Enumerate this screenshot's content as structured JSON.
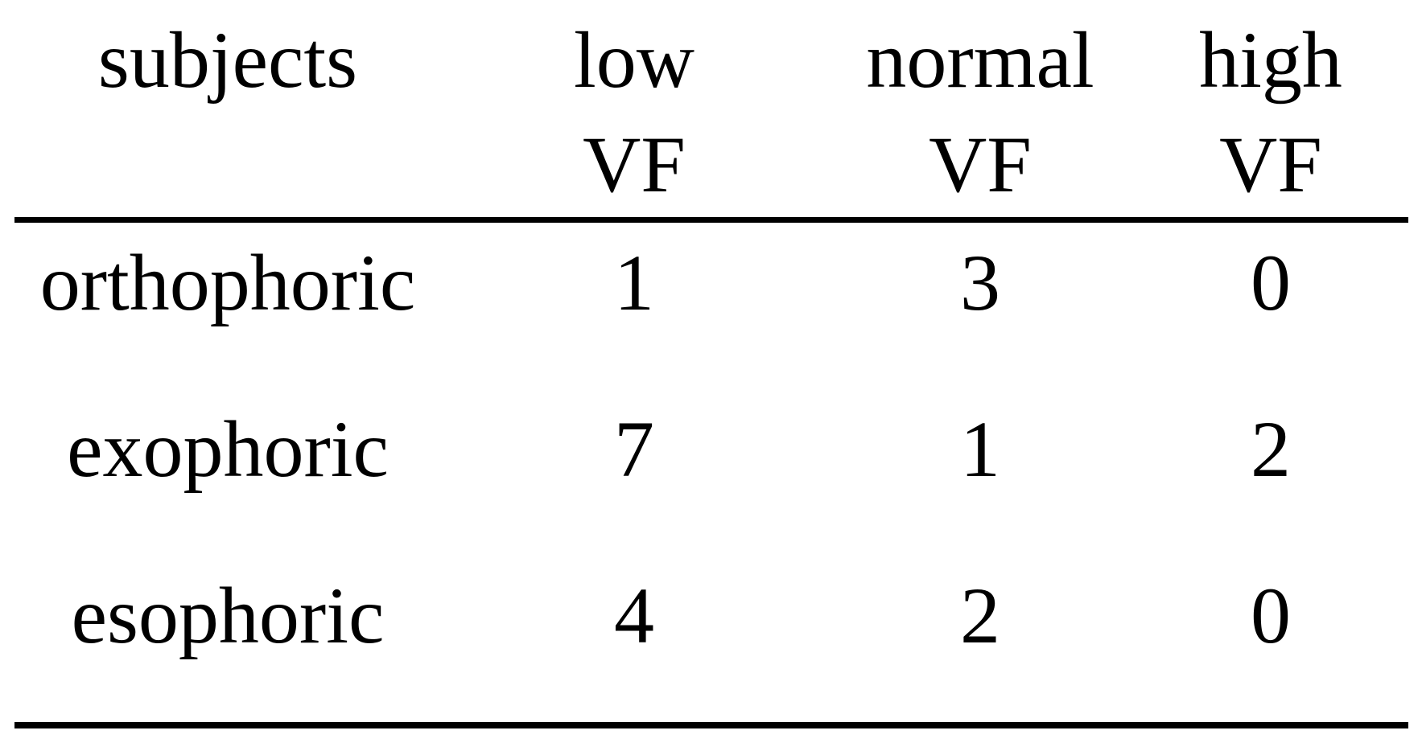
{
  "figure": {
    "background_color": "#ffffff",
    "text_color": "#000000",
    "rule_color": "#000000"
  },
  "table": {
    "columns": [
      {
        "id": "subjects",
        "line1": "subjects",
        "line2": ""
      },
      {
        "id": "low-vf",
        "line1": "low",
        "line2": "VF"
      },
      {
        "id": "normal-vf",
        "line1": "normal",
        "line2": "VF"
      },
      {
        "id": "high-vf",
        "line1": "high",
        "line2": "VF"
      }
    ],
    "rows": [
      {
        "label": "orthophoric",
        "values": [
          "1",
          "3",
          "0"
        ]
      },
      {
        "label": "exophoric",
        "values": [
          "7",
          "1",
          "2"
        ]
      },
      {
        "label": "esophoric",
        "values": [
          "4",
          "2",
          "0"
        ]
      }
    ]
  },
  "chart_data": {
    "type": "table",
    "columns": [
      "subjects",
      "low VF",
      "normal VF",
      "high VF"
    ],
    "rows": [
      [
        "orthophoric",
        1,
        3,
        0
      ],
      [
        "exophoric",
        7,
        1,
        2
      ],
      [
        "esophoric",
        4,
        2,
        0
      ]
    ]
  }
}
